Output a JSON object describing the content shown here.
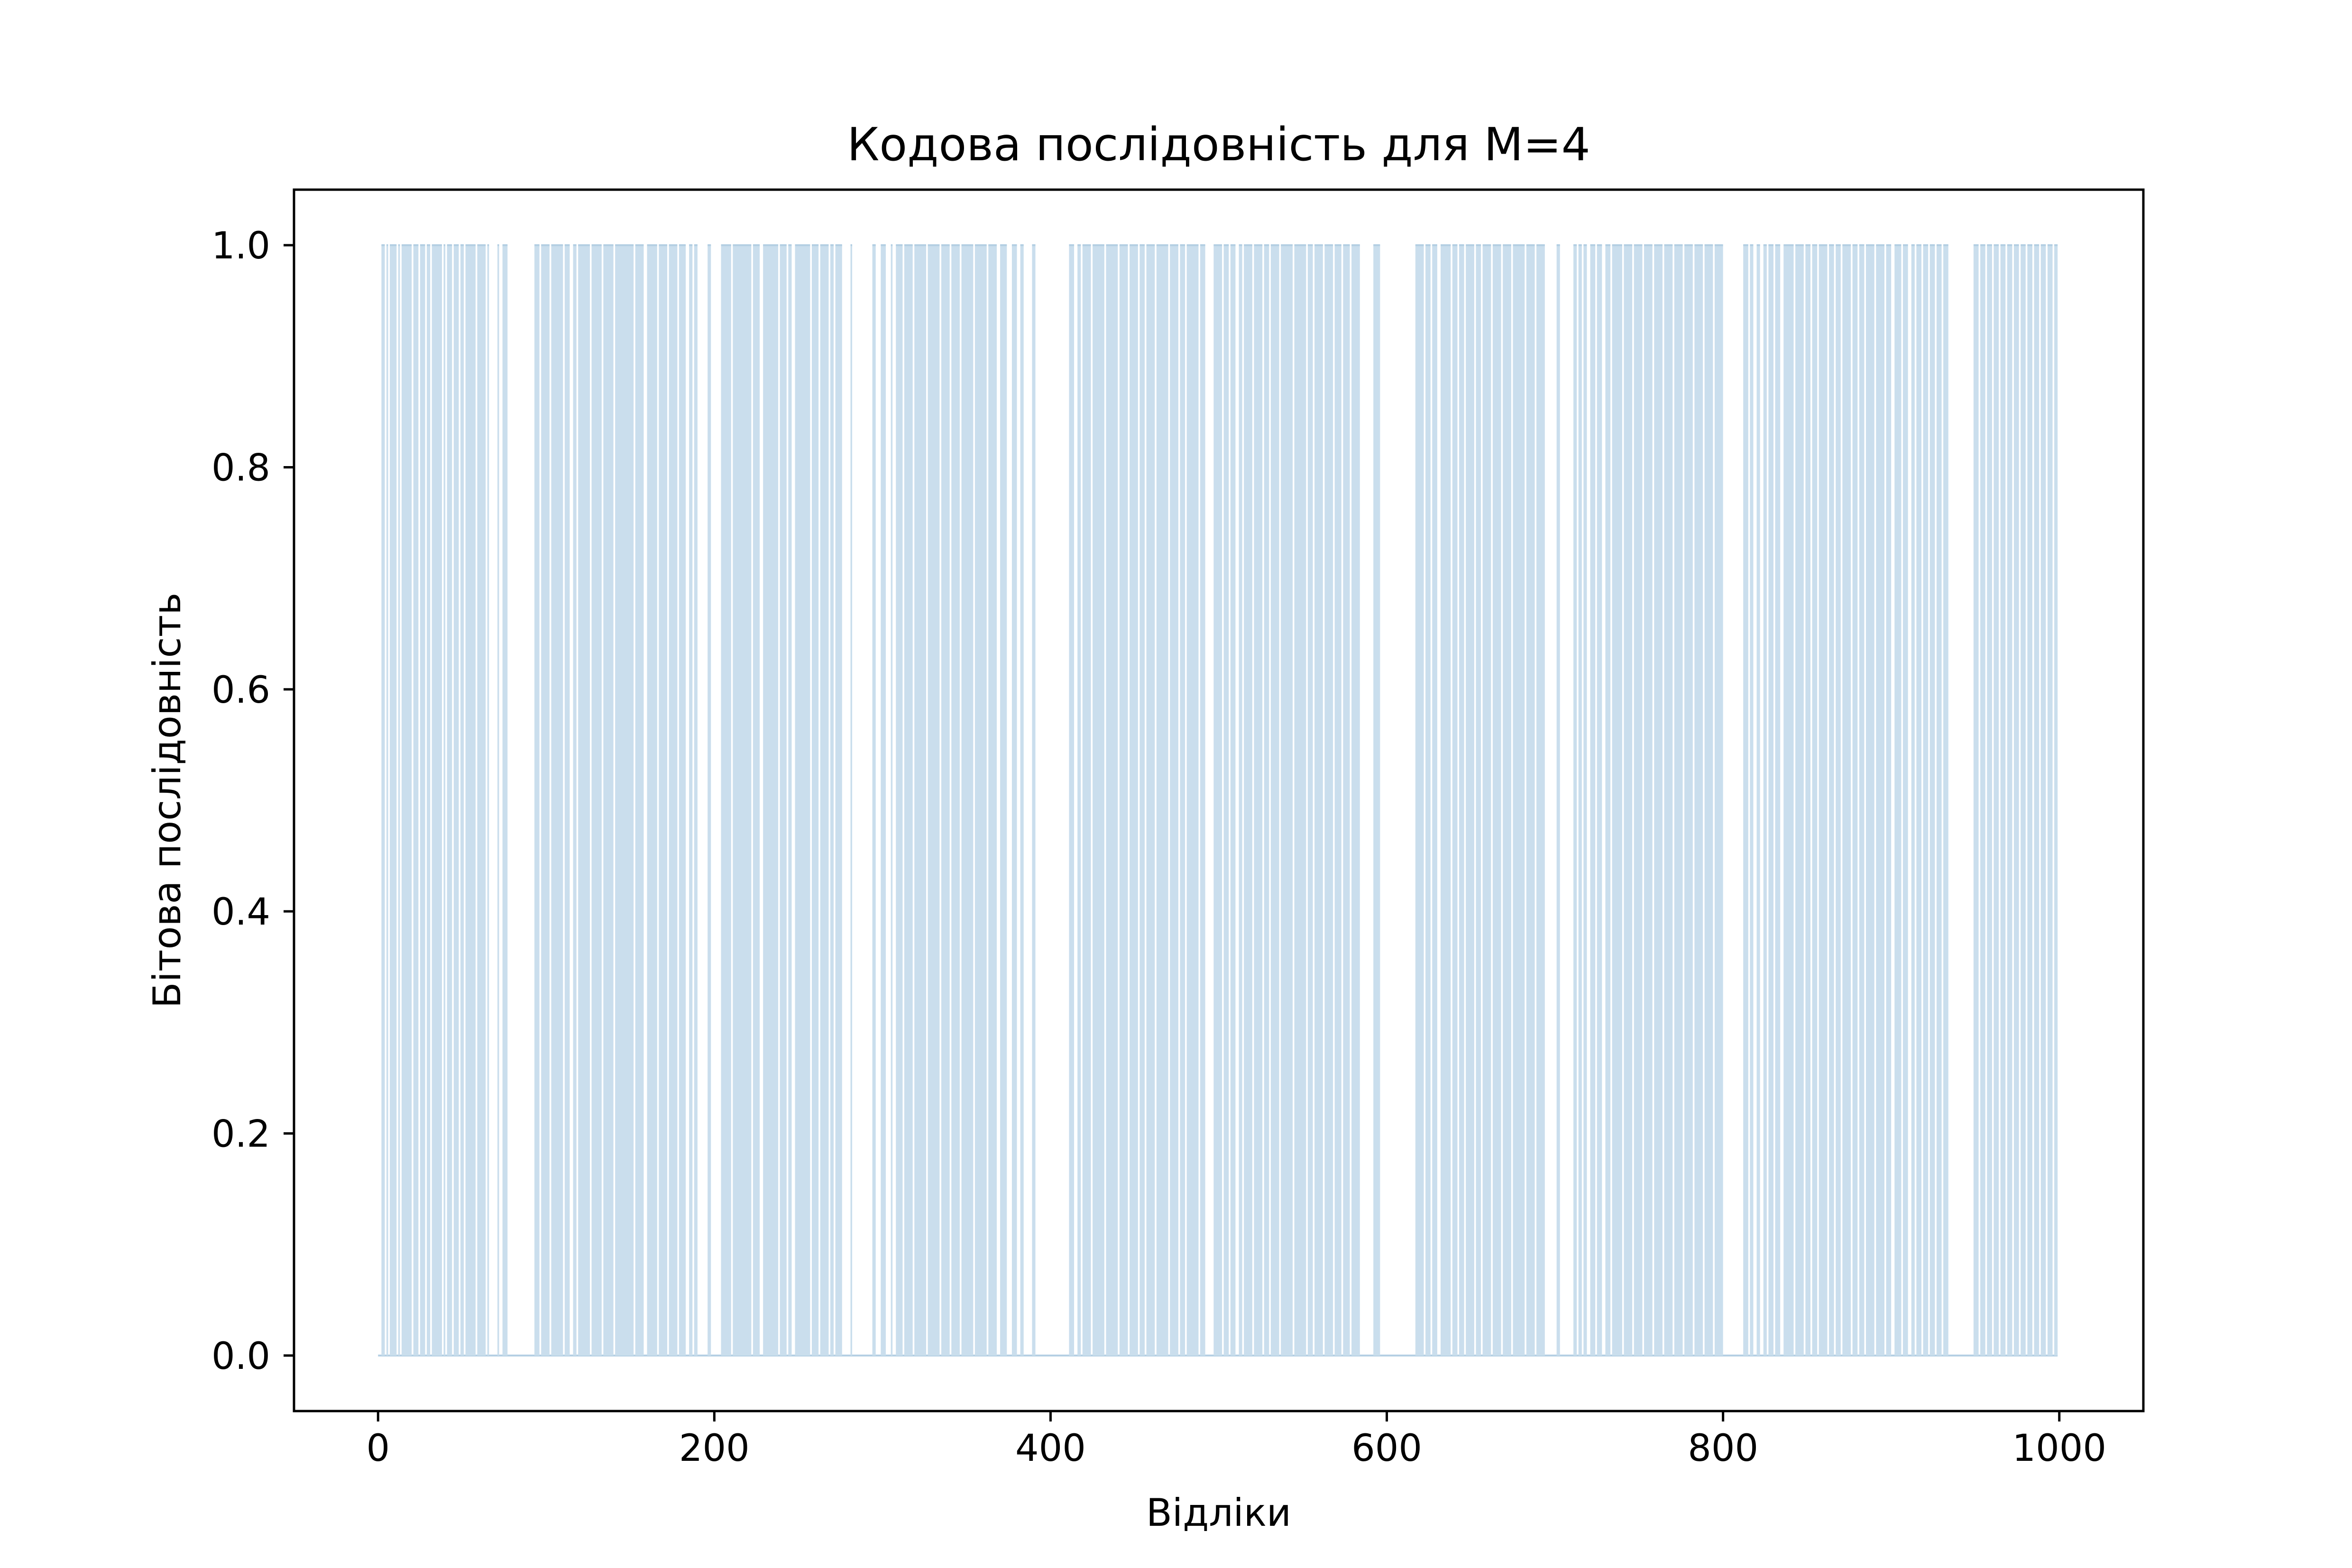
{
  "chart_data": {
    "type": "area",
    "title": "Кодова послідовність для M=4",
    "xlabel": "Відліки",
    "ylabel": "Бітова послідовність",
    "xlim": [
      -50,
      1050
    ],
    "ylim": [
      -0.05,
      1.05
    ],
    "x_ticks": [
      0,
      200,
      400,
      600,
      800,
      1000
    ],
    "x_tick_labels": [
      "0",
      "200",
      "400",
      "600",
      "800",
      "1000"
    ],
    "y_ticks": [
      0.0,
      0.2,
      0.4,
      0.6,
      0.8,
      1.0
    ],
    "y_tick_labels": [
      "0.0",
      "0.2",
      "0.4",
      "0.6",
      "0.8",
      "1.0"
    ],
    "grid": false,
    "fill_color": "#cadeed",
    "edge_color": "#b4cfe3",
    "high_segments": [
      [
        2,
        4
      ],
      [
        5,
        6
      ],
      [
        7,
        11
      ],
      [
        12,
        13
      ],
      [
        14,
        20
      ],
      [
        21,
        24
      ],
      [
        25,
        28
      ],
      [
        29,
        31
      ],
      [
        32,
        38
      ],
      [
        39,
        40
      ],
      [
        41,
        44
      ],
      [
        45,
        48
      ],
      [
        49,
        51
      ],
      [
        52,
        58
      ],
      [
        59,
        64
      ],
      [
        65,
        66
      ],
      [
        71,
        72
      ],
      [
        74,
        77
      ],
      [
        93,
        96
      ],
      [
        97,
        102
      ],
      [
        103,
        110
      ],
      [
        111,
        114
      ],
      [
        116,
        118
      ],
      [
        119,
        126
      ],
      [
        127,
        133
      ],
      [
        134,
        140
      ],
      [
        141,
        152
      ],
      [
        153,
        158
      ],
      [
        160,
        166
      ],
      [
        167,
        172
      ],
      [
        173,
        178
      ],
      [
        179,
        183
      ],
      [
        185,
        187
      ],
      [
        188,
        190
      ],
      [
        196,
        198
      ],
      [
        204,
        210
      ],
      [
        211,
        222
      ],
      [
        223,
        227
      ],
      [
        229,
        238
      ],
      [
        239,
        243
      ],
      [
        244,
        246
      ],
      [
        248,
        257
      ],
      [
        258,
        262
      ],
      [
        263,
        268
      ],
      [
        269,
        271
      ],
      [
        272,
        276
      ],
      [
        281,
        282
      ],
      [
        294,
        296
      ],
      [
        299,
        302
      ],
      [
        305,
        306
      ],
      [
        308,
        312
      ],
      [
        313,
        318
      ],
      [
        319,
        326
      ],
      [
        327,
        334
      ],
      [
        335,
        340
      ],
      [
        341,
        346
      ],
      [
        347,
        354
      ],
      [
        355,
        362
      ],
      [
        363,
        368
      ],
      [
        370,
        374
      ],
      [
        377,
        380
      ],
      [
        382,
        384
      ],
      [
        389,
        391
      ],
      [
        411,
        414
      ],
      [
        416,
        418
      ],
      [
        419,
        424
      ],
      [
        425,
        432
      ],
      [
        433,
        440
      ],
      [
        441,
        446
      ],
      [
        447,
        452
      ],
      [
        453,
        456
      ],
      [
        457,
        462
      ],
      [
        463,
        470
      ],
      [
        471,
        476
      ],
      [
        477,
        480
      ],
      [
        481,
        488
      ],
      [
        489,
        492
      ],
      [
        497,
        502
      ],
      [
        503,
        506
      ],
      [
        507,
        510
      ],
      [
        512,
        514
      ],
      [
        515,
        520
      ],
      [
        521,
        526
      ],
      [
        527,
        530
      ],
      [
        531,
        536
      ],
      [
        537,
        544
      ],
      [
        545,
        552
      ],
      [
        553,
        556
      ],
      [
        557,
        562
      ],
      [
        563,
        568
      ],
      [
        569,
        573
      ],
      [
        574,
        578
      ],
      [
        579,
        584
      ],
      [
        592,
        596
      ],
      [
        617,
        622
      ],
      [
        623,
        626
      ],
      [
        627,
        630
      ],
      [
        632,
        638
      ],
      [
        639,
        642
      ],
      [
        643,
        646
      ],
      [
        647,
        652
      ],
      [
        653,
        656
      ],
      [
        657,
        662
      ],
      [
        663,
        668
      ],
      [
        669,
        674
      ],
      [
        675,
        682
      ],
      [
        683,
        688
      ],
      [
        689,
        694
      ],
      [
        701,
        703
      ],
      [
        711,
        713
      ],
      [
        714,
        716
      ],
      [
        717,
        719
      ],
      [
        721,
        724
      ],
      [
        725,
        728
      ],
      [
        730,
        733
      ],
      [
        734,
        740
      ],
      [
        741,
        746
      ],
      [
        747,
        752
      ],
      [
        753,
        758
      ],
      [
        759,
        764
      ],
      [
        765,
        770
      ],
      [
        771,
        776
      ],
      [
        777,
        782
      ],
      [
        783,
        788
      ],
      [
        789,
        794
      ],
      [
        795,
        800
      ],
      [
        812,
        815
      ],
      [
        816,
        818
      ],
      [
        820,
        822
      ],
      [
        824,
        826
      ],
      [
        827,
        830
      ],
      [
        831,
        834
      ],
      [
        836,
        842
      ],
      [
        843,
        848
      ],
      [
        849,
        852
      ],
      [
        853,
        856
      ],
      [
        857,
        862
      ],
      [
        863,
        866
      ],
      [
        867,
        870
      ],
      [
        871,
        876
      ],
      [
        877,
        880
      ],
      [
        881,
        884
      ],
      [
        885,
        890
      ],
      [
        891,
        896
      ],
      [
        897,
        900
      ],
      [
        902,
        906
      ],
      [
        907,
        910
      ],
      [
        912,
        914
      ],
      [
        915,
        918
      ],
      [
        919,
        922
      ],
      [
        923,
        926
      ],
      [
        927,
        930
      ],
      [
        931,
        934
      ],
      [
        949,
        952
      ],
      [
        953,
        956
      ],
      [
        957,
        960
      ],
      [
        961,
        964
      ],
      [
        965,
        968
      ],
      [
        969,
        972
      ],
      [
        973,
        976
      ],
      [
        977,
        980
      ],
      [
        981,
        984
      ],
      [
        985,
        988
      ],
      [
        989,
        992
      ],
      [
        993,
        996
      ],
      [
        997,
        999
      ]
    ]
  }
}
